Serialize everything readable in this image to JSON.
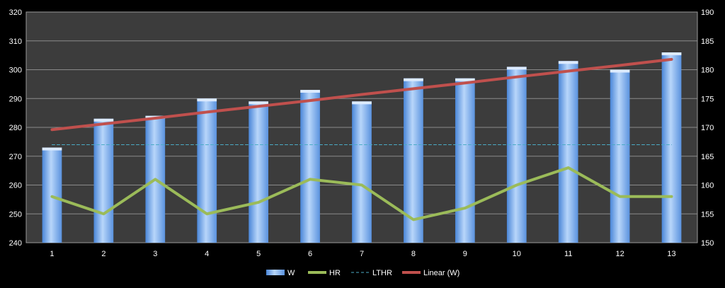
{
  "chart_data": {
    "type": "bar",
    "categories": [
      "1",
      "2",
      "3",
      "4",
      "5",
      "6",
      "7",
      "8",
      "9",
      "10",
      "11",
      "12",
      "13"
    ],
    "series": [
      {
        "name": "W",
        "type": "bar",
        "axis": "left",
        "values": [
          273,
          283,
          284,
          290,
          289,
          293,
          289,
          297,
          297,
          301,
          303,
          300,
          306
        ],
        "color": "#6FA8F0"
      },
      {
        "name": "HR",
        "type": "line",
        "axis": "right",
        "values": [
          158,
          155,
          161,
          155,
          157,
          161,
          160,
          154,
          156,
          160,
          163,
          158,
          158
        ],
        "color": "#9BBB59"
      },
      {
        "name": "LTHR",
        "type": "line",
        "style": "dashed",
        "axis": "left",
        "values": [
          274,
          274,
          274,
          274,
          274,
          274,
          274,
          274,
          274,
          274,
          274,
          274,
          274
        ],
        "color": "#4BACC6"
      },
      {
        "name": "Linear (W)",
        "type": "trendline",
        "axis": "left",
        "values": [
          279.2,
          281.2,
          283.2,
          285.3,
          287.3,
          289.3,
          291.4,
          293.4,
          295.4,
          297.5,
          299.5,
          301.5,
          303.6
        ],
        "color": "#C0504D"
      }
    ],
    "y_left": {
      "ylim": [
        240,
        320
      ],
      "ticks": [
        "240",
        "250",
        "260",
        "270",
        "280",
        "290",
        "300",
        "310",
        "320"
      ]
    },
    "y_right": {
      "ylim": [
        150,
        190
      ],
      "ticks": [
        "150",
        "155",
        "160",
        "165",
        "170",
        "175",
        "180",
        "185",
        "190"
      ]
    },
    "grid": true,
    "legend": "bottom",
    "title": "",
    "xlabel": "",
    "ylabel": "",
    "plot_background": "#3C3C3C",
    "text_color": "#FFFFFF"
  }
}
